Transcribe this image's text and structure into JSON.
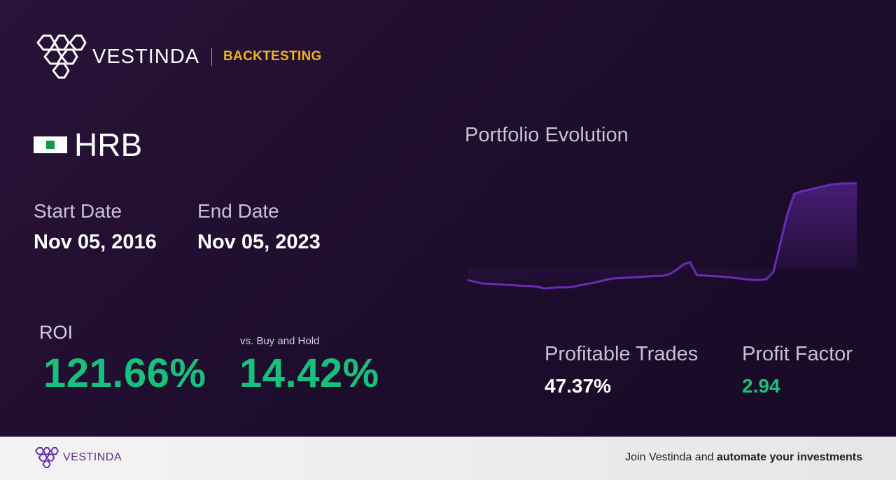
{
  "header": {
    "brand": "VESTINDA",
    "section": "BACKTESTING"
  },
  "ticker": {
    "symbol": "HRB",
    "flag_icon": "flag-icon"
  },
  "dates": {
    "start_label": "Start Date",
    "start_value": "Nov 05, 2016",
    "end_label": "End Date",
    "end_value": "Nov 05, 2023"
  },
  "roi": {
    "label": "ROI",
    "value": "121.66%",
    "vs_label": "vs. Buy and Hold",
    "vs_value": "14.42%"
  },
  "stats": {
    "profitable_trades_label": "Profitable Trades",
    "profitable_trades_value": "47.37%",
    "profit_factor_label": "Profit Factor",
    "profit_factor_value": "2.94"
  },
  "colors": {
    "positive": "#16c17c",
    "accent": "#f1b21c",
    "line": "#6a2cb3"
  },
  "chart_data": {
    "type": "area",
    "title": "Portfolio Evolution",
    "xlabel": "",
    "ylabel": "",
    "grid": false,
    "legend": "none",
    "series": [
      {
        "values": [
          1.0,
          0.98,
          0.96,
          0.955,
          0.95,
          0.945,
          0.94,
          0.935,
          0.93,
          0.928,
          0.92,
          0.9,
          0.905,
          0.91,
          0.91,
          0.915,
          0.935,
          0.95,
          0.965,
          0.985,
          1.005,
          1.02,
          1.025,
          1.03,
          1.035,
          1.04,
          1.045,
          1.05,
          1.052,
          1.07,
          1.12,
          1.19,
          1.22,
          1.06,
          1.055,
          1.05,
          1.045,
          1.04,
          1.03,
          1.02,
          1.01,
          1.005,
          1.0,
          1.01,
          1.1,
          1.45,
          1.8,
          2.05,
          2.08,
          2.1,
          2.12,
          2.14,
          2.16,
          2.17,
          2.18,
          2.18,
          2.18
        ]
      }
    ]
  },
  "footer": {
    "brand": "VESTINDA",
    "cta_prefix": "Join Vestinda and ",
    "cta_bold": "automate your investments"
  }
}
